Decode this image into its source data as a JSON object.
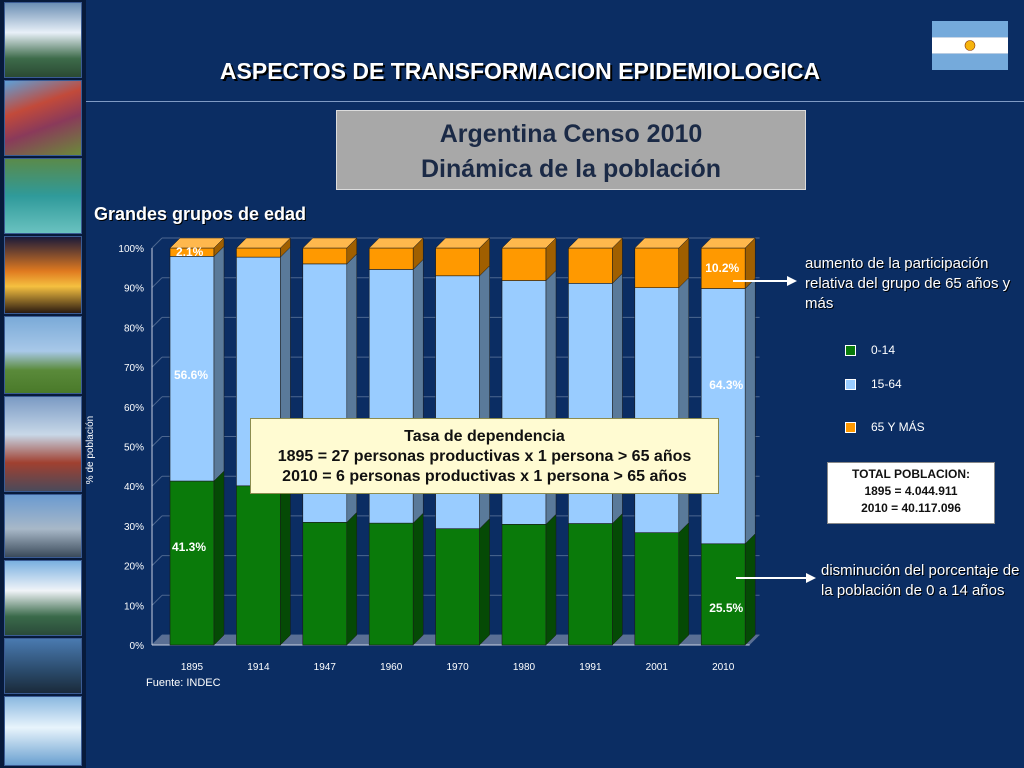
{
  "header": {
    "title": "ASPECTOS DE TRANSFORMACION EPIDEMIOLOGICA",
    "box_line1": "Argentina Censo 2010",
    "box_line2": "Dinámica de la población",
    "subtitle": "Grandes grupos de edad"
  },
  "colors": {
    "age_0_14": "#0a7a0a",
    "age_15_64": "#99ccff",
    "age_65_plus": "#ff9900",
    "background": "#0b2d63"
  },
  "chart_data": {
    "type": "bar",
    "stacked": true,
    "categories": [
      "1895",
      "1914",
      "1947",
      "1960",
      "1970",
      "1980",
      "1991",
      "2001",
      "2010"
    ],
    "series": [
      {
        "name": "0-14",
        "values": [
          41.3,
          40.1,
          30.9,
          30.7,
          29.3,
          30.4,
          30.6,
          28.3,
          25.5
        ]
      },
      {
        "name": "15-64",
        "values": [
          56.6,
          57.6,
          65.1,
          63.9,
          63.7,
          61.4,
          60.5,
          61.7,
          64.3
        ]
      },
      {
        "name": "65 Y MÁS",
        "values": [
          2.1,
          2.3,
          4.0,
          5.4,
          7.0,
          8.2,
          8.9,
          10.0,
          10.2
        ]
      }
    ],
    "ylabel": "% de población",
    "ylim": [
      0,
      100
    ],
    "yticks": [
      "0%",
      "10%",
      "20%",
      "30%",
      "40%",
      "50%",
      "60%",
      "70%",
      "80%",
      "90%",
      "100%"
    ],
    "data_labels": {
      "first_0_14": "41.3%",
      "first_15_64": "56.6%",
      "first_65": "2.1%",
      "last_0_14": "25.5%",
      "last_15_64": "64.3%",
      "last_65": "10.2%"
    },
    "legend": "right"
  },
  "source": "Fuente: INDEC",
  "dependency": {
    "title": "Tasa de dependencia",
    "line1": "1895 = 27 personas productivas x 1 persona > 65 años",
    "line2": "2010 =   6 personas productivas x 1 persona > 65 años"
  },
  "notes": {
    "top": "aumento de la participación relativa del grupo de 65 años y más",
    "bottom": "disminución del porcentaje de la población de 0 a 14 años"
  },
  "legend": {
    "items": [
      "0-14",
      "15-64",
      "65 Y MÁS"
    ]
  },
  "total": {
    "title": "TOTAL POBLACION:",
    "line1": "1895 =   4.044.911",
    "line2": "2010 = 40.117.096"
  }
}
